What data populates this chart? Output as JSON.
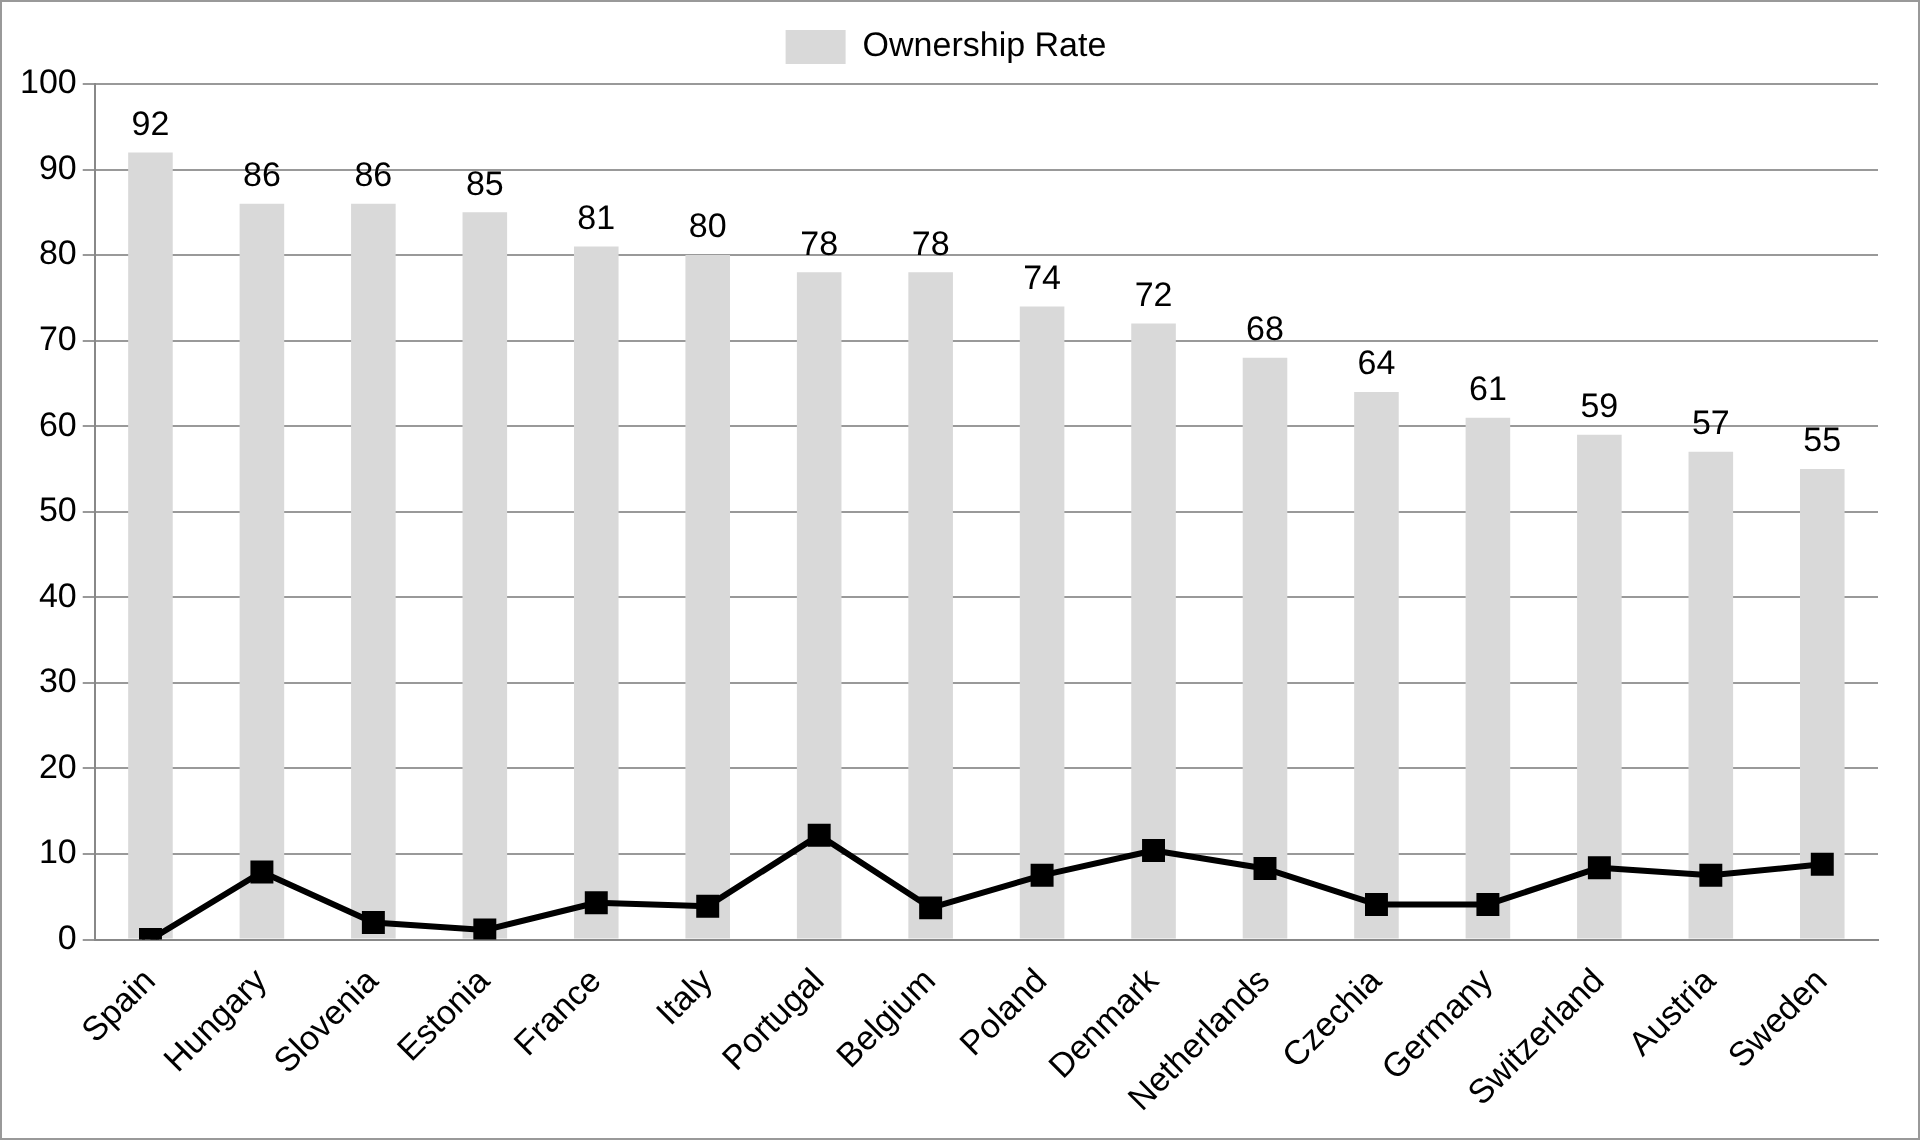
{
  "chart_data": {
    "type": "bar",
    "categories": [
      "Spain",
      "Hungary",
      "Slovenia",
      "Estonia",
      "France",
      "Italy",
      "Portugal",
      "Belgium",
      "Poland",
      "Denmark",
      "Netherlands",
      "Czechia",
      "Germany",
      "Switzerland",
      "Austria",
      "Sweden"
    ],
    "series": [
      {
        "name": "Ownership Rate",
        "color": "#d9d9d9",
        "values": [
          92,
          86,
          86,
          85,
          81,
          80,
          78,
          78,
          74,
          72,
          68,
          64,
          61,
          59,
          57,
          55
        ],
        "data_labels": true
      },
      {
        "type": "line",
        "color": "#000000",
        "marker": "square",
        "line_style": "solid",
        "values": [
          0,
          7.9,
          2,
          1.1,
          4.3,
          3.9,
          12.2,
          3.7,
          7.5,
          10.4,
          8.3,
          4.1,
          4.1,
          8.4,
          7.5,
          8.8
        ]
      }
    ],
    "ylim": [
      0,
      100
    ],
    "yticks": [
      0,
      10,
      20,
      30,
      40,
      50,
      60,
      70,
      80,
      90,
      100
    ],
    "grid": "y",
    "legend": "top"
  }
}
